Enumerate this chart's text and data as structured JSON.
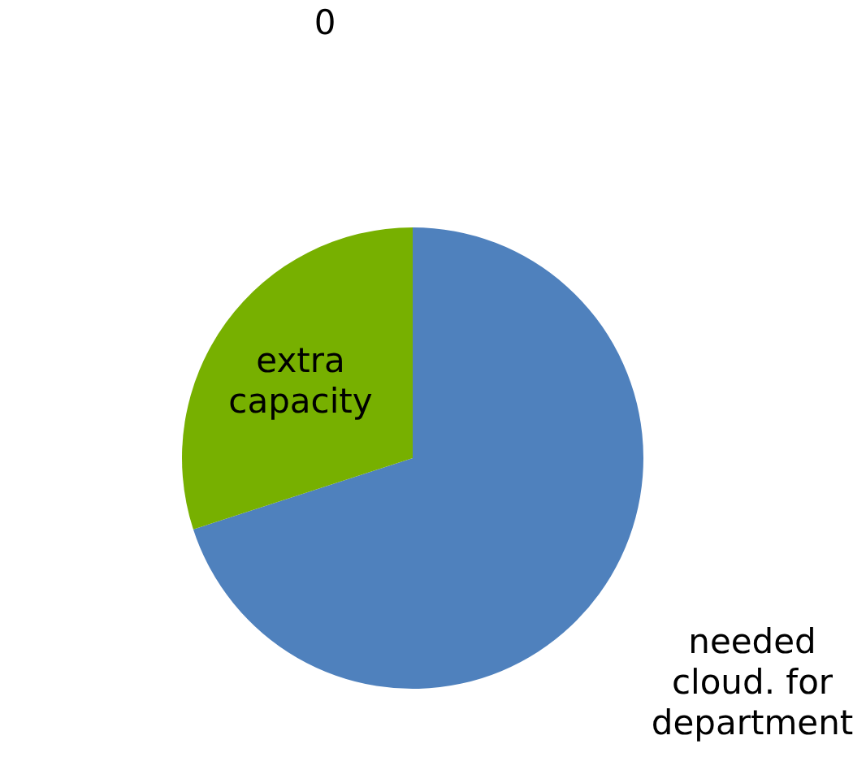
{
  "chart_data": {
    "type": "pie",
    "categories": [
      "needed cloud. for department",
      "extra capacity"
    ],
    "values": [
      70,
      30
    ],
    "colors": [
      "#4f81bd",
      "#77b000"
    ],
    "annotations": [
      "0"
    ],
    "legend": false
  }
}
